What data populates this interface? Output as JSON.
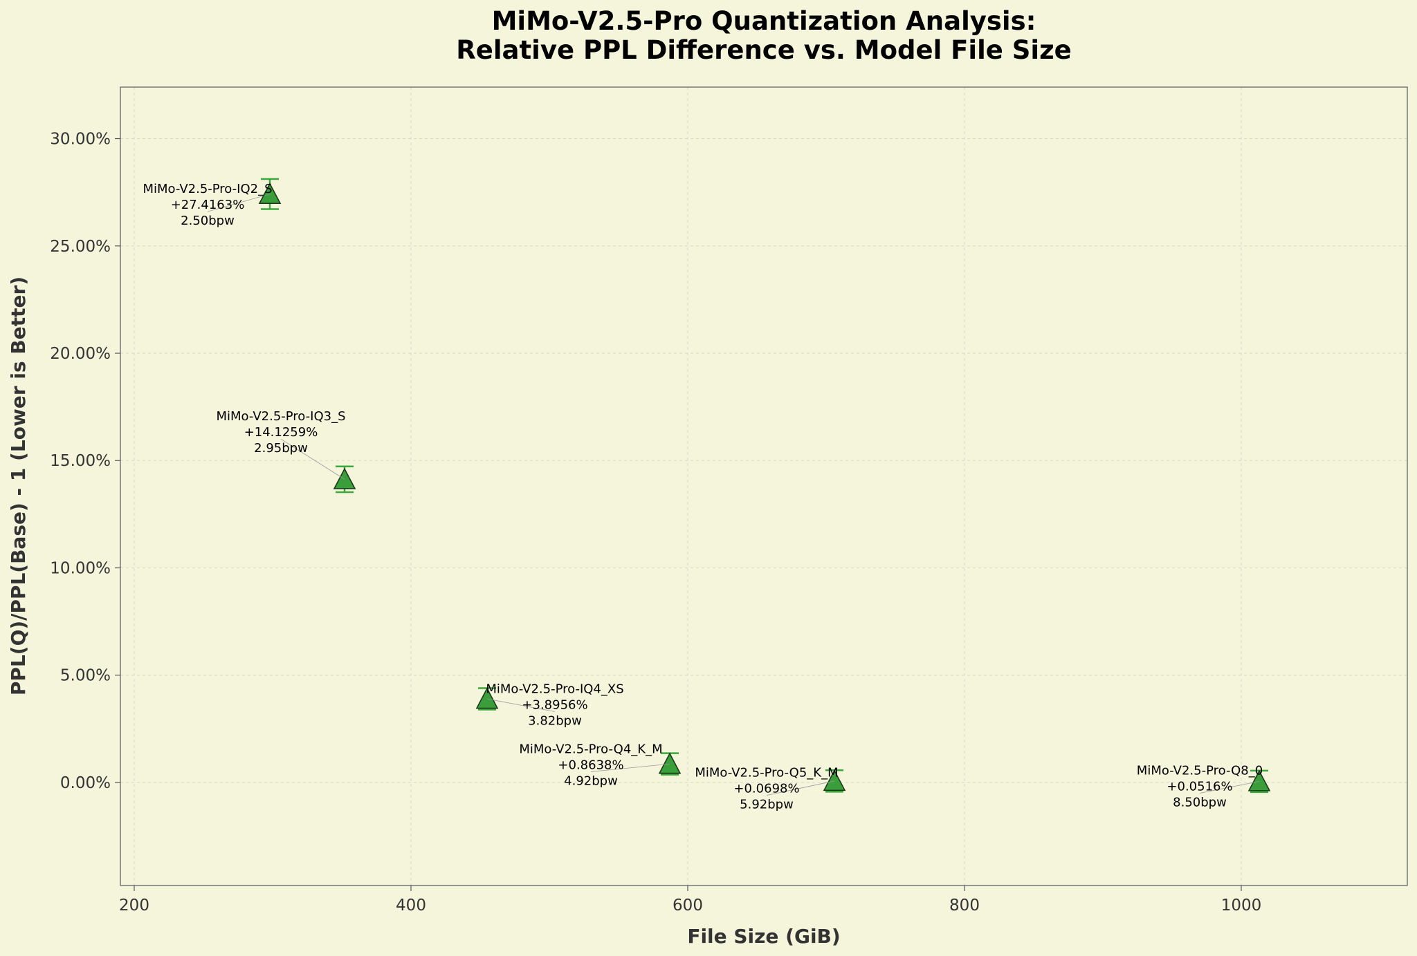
{
  "chart_data": {
    "type": "scatter",
    "title_lines": [
      "MiMo-V2.5-Pro Quantization Analysis:",
      "Relative PPL Difference vs. Model File Size"
    ],
    "xlabel": "File Size (GiB)",
    "ylabel": "PPL(Q)/PPL(Base) - 1 (Lower is Better)",
    "xlim": [
      190,
      1120
    ],
    "ylim": [
      -4.8,
      32.4
    ],
    "x_ticks": [
      200,
      400,
      600,
      800,
      1000
    ],
    "y_ticks": [
      0,
      5,
      10,
      15,
      20,
      25,
      30
    ],
    "y_tick_labels": [
      "0.00%",
      "5.00%",
      "10.00%",
      "15.00%",
      "20.00%",
      "25.00%",
      "30.00%"
    ],
    "grid": true,
    "marker": "triangle",
    "colors": {
      "marker_fill": "#3a9e3a",
      "marker_edge": "#1a3a1a",
      "errorbar": "#3aa83a",
      "background": "#f5f5dc"
    },
    "points": [
      {
        "label": "MiMo-V2.5-Pro-IQ2_S",
        "x": 298,
        "y": 27.4163,
        "err_low": 0.7,
        "err_high": 0.7,
        "value_label": "+27.4163%",
        "bpw": "2.50bpw",
        "annot_x": 253,
        "annot_y": 26.6
      },
      {
        "label": "MiMo-V2.5-Pro-IQ3_S",
        "x": 352,
        "y": 14.1259,
        "err_low": 0.6,
        "err_high": 0.6,
        "value_label": "+14.1259%",
        "bpw": "2.95bpw",
        "annot_x": 306,
        "annot_y": 16.0
      },
      {
        "label": "MiMo-V2.5-Pro-IQ4_XS",
        "x": 455,
        "y": 3.8956,
        "err_low": 0.5,
        "err_high": 0.5,
        "value_label": "+3.8956%",
        "bpw": "3.82bpw",
        "annot_x": 504,
        "annot_y": 3.3
      },
      {
        "label": "MiMo-V2.5-Pro-Q4_K_M",
        "x": 587,
        "y": 0.8638,
        "err_low": 0.5,
        "err_high": 0.5,
        "value_label": "+0.8638%",
        "bpw": "4.92bpw",
        "annot_x": 530,
        "annot_y": 0.5
      },
      {
        "label": "MiMo-V2.5-Pro-Q5_K_M",
        "x": 706,
        "y": 0.0698,
        "err_low": 0.5,
        "err_high": 0.5,
        "value_label": "+0.0698%",
        "bpw": "5.92bpw",
        "annot_x": 657,
        "annot_y": -0.6
      },
      {
        "label": "MiMo-V2.5-Pro-Q8_0",
        "x": 1013,
        "y": 0.0516,
        "err_low": 0.5,
        "err_high": 0.5,
        "value_label": "+0.0516%",
        "bpw": "8.50bpw",
        "annot_x": 970,
        "annot_y": -0.5
      }
    ]
  }
}
